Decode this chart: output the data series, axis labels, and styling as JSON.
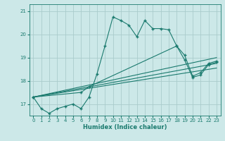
{
  "background_color": "#cce8e8",
  "grid_color": "#aacccc",
  "line_color": "#1a7a6e",
  "line_width": 0.8,
  "marker_size": 2.0,
  "xlabel": "Humidex (Indice chaleur)",
  "ylabel_ticks": [
    17,
    18,
    19,
    20,
    21
  ],
  "xlim": [
    -0.5,
    23.5
  ],
  "ylim": [
    16.5,
    21.3
  ],
  "line1_x": [
    0,
    1,
    2,
    3,
    4,
    5,
    6,
    7,
    8,
    9,
    10,
    11,
    12,
    13,
    14,
    15,
    16,
    17,
    18,
    19,
    20,
    21,
    22,
    23
  ],
  "line1_y": [
    17.3,
    16.8,
    16.6,
    16.8,
    16.9,
    17.0,
    16.8,
    17.3,
    18.3,
    19.5,
    20.75,
    20.6,
    20.4,
    19.9,
    20.6,
    20.25,
    20.25,
    20.2,
    19.5,
    18.9,
    18.15,
    18.25,
    18.7,
    18.8
  ],
  "line2_x": [
    0,
    23
  ],
  "line2_y": [
    17.3,
    19.0
  ],
  "line3_x": [
    0,
    23
  ],
  "line3_y": [
    17.3,
    18.75
  ],
  "line4_x": [
    0,
    23
  ],
  "line4_y": [
    17.3,
    18.55
  ],
  "line5_x": [
    0,
    6,
    7,
    18,
    19,
    20,
    21,
    22,
    23
  ],
  "line5_y": [
    17.3,
    17.5,
    17.75,
    19.5,
    19.1,
    18.2,
    18.35,
    18.75,
    18.85
  ]
}
